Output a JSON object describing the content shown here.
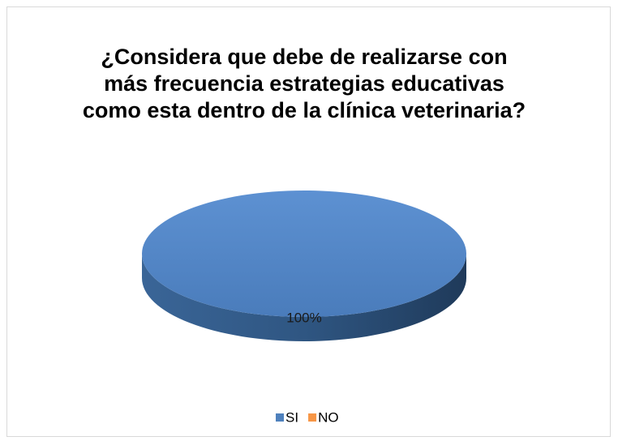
{
  "chart_data": {
    "type": "pie",
    "title": "¿Considera que debe de realizarse con más frecuencia estrategias educativas como esta dentro de la clínica veterinaria?",
    "categories": [
      "SI",
      "NO"
    ],
    "values": [
      100,
      0
    ],
    "value_labels": [
      "100%",
      null
    ],
    "colors": [
      "#4f81bd",
      "#f79646"
    ],
    "legend": "bottom",
    "3d": true
  }
}
